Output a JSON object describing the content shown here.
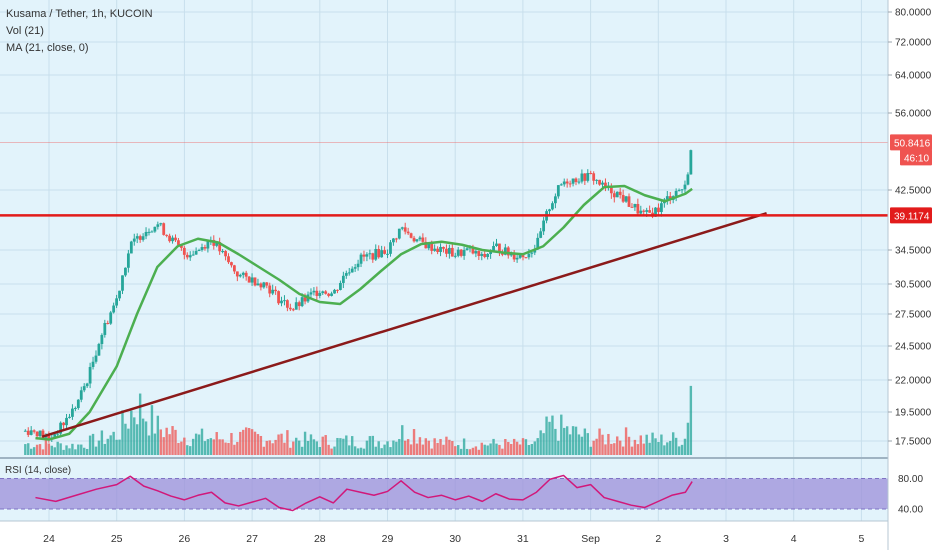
{
  "header": {
    "symbol_line": "Kusama / Tether, 1h, KUCOIN",
    "vol_line": "Vol (21)",
    "ma_line": "MA (21, close, 0)"
  },
  "rsi_panel": {
    "label": "RSI (14, close)",
    "ticks": [
      "80.00",
      "40.00"
    ]
  },
  "colors": {
    "background": "#e2f3fb",
    "up_candle": "#26a69a",
    "down_candle": "#ef5350",
    "ma_line": "#4caf50",
    "trendline": "#8b1a1a",
    "resistance": "#e21b1b",
    "rsi_line": "#d1187a",
    "rsi_band": "#9c8fd9"
  },
  "chart_data": {
    "type": "candlestick",
    "x_tick_labels": [
      "24",
      "25",
      "26",
      "27",
      "28",
      "29",
      "30",
      "31",
      "Sep",
      "2",
      "3",
      "4",
      "5"
    ],
    "y_tick_labels": [
      "80.0000",
      "72.0000",
      "64.0000",
      "56.0000",
      "42.5000",
      "34.5000",
      "30.5000",
      "27.5000",
      "24.5000",
      "22.0000",
      "19.5000",
      "17.5000"
    ],
    "price_badges": [
      {
        "label": "50.8416",
        "color": "#ef5350"
      },
      {
        "label": "46:10",
        "color": "#ef5350"
      },
      {
        "label": "39.1174",
        "color": "#e21b1b"
      }
    ],
    "resistance_level": 39.1174,
    "last_price": 50.8416,
    "close_path": [
      [
        23.8,
        18.2
      ],
      [
        24.0,
        17.6
      ],
      [
        24.2,
        18.6
      ],
      [
        24.4,
        20.0
      ],
      [
        24.6,
        22.5
      ],
      [
        24.8,
        26.0
      ],
      [
        25.0,
        29.0
      ],
      [
        25.2,
        35.0
      ],
      [
        25.4,
        37.0
      ],
      [
        25.6,
        38.0
      ],
      [
        25.8,
        36.0
      ],
      [
        26.0,
        34.0
      ],
      [
        26.2,
        34.5
      ],
      [
        26.4,
        36.0
      ],
      [
        26.6,
        33.5
      ],
      [
        26.8,
        31.5
      ],
      [
        27.0,
        31.0
      ],
      [
        27.2,
        30.5
      ],
      [
        27.4,
        29.0
      ],
      [
        27.6,
        28.0
      ],
      [
        27.8,
        29.0
      ],
      [
        28.0,
        30.0
      ],
      [
        28.2,
        29.5
      ],
      [
        28.4,
        32.0
      ],
      [
        28.6,
        33.5
      ],
      [
        28.8,
        34.0
      ],
      [
        29.0,
        34.5
      ],
      [
        29.2,
        37.5
      ],
      [
        29.4,
        36.0
      ],
      [
        29.6,
        35.0
      ],
      [
        29.8,
        34.5
      ],
      [
        30.0,
        34.0
      ],
      [
        30.2,
        34.5
      ],
      [
        30.4,
        33.5
      ],
      [
        30.6,
        35.0
      ],
      [
        30.8,
        34.0
      ],
      [
        31.0,
        33.8
      ],
      [
        31.2,
        35.0
      ],
      [
        31.4,
        40.5
      ],
      [
        31.6,
        44.0
      ],
      [
        31.8,
        44.5
      ],
      [
        32.0,
        45.0
      ],
      [
        32.2,
        43.0
      ],
      [
        32.4,
        42.0
      ],
      [
        32.6,
        40.5
      ],
      [
        32.8,
        39.0
      ],
      [
        33.0,
        40.0
      ],
      [
        33.2,
        42.0
      ],
      [
        33.4,
        43.0
      ],
      [
        33.5,
        50.8
      ]
    ],
    "ma_path": [
      [
        23.8,
        17.7
      ],
      [
        24.0,
        17.6
      ],
      [
        24.3,
        18.0
      ],
      [
        24.6,
        19.5
      ],
      [
        25.0,
        23.0
      ],
      [
        25.3,
        27.5
      ],
      [
        25.6,
        32.5
      ],
      [
        25.9,
        35.0
      ],
      [
        26.2,
        36.0
      ],
      [
        26.5,
        35.5
      ],
      [
        26.8,
        34.0
      ],
      [
        27.1,
        32.5
      ],
      [
        27.4,
        31.0
      ],
      [
        27.7,
        29.5
      ],
      [
        28.0,
        28.7
      ],
      [
        28.3,
        28.5
      ],
      [
        28.6,
        30.0
      ],
      [
        28.9,
        32.0
      ],
      [
        29.2,
        34.0
      ],
      [
        29.5,
        35.3
      ],
      [
        29.8,
        35.6
      ],
      [
        30.1,
        35.2
      ],
      [
        30.4,
        34.5
      ],
      [
        30.7,
        34.2
      ],
      [
        31.0,
        34.0
      ],
      [
        31.3,
        35.0
      ],
      [
        31.6,
        37.5
      ],
      [
        31.9,
        40.5
      ],
      [
        32.2,
        43.0
      ],
      [
        32.5,
        43.2
      ],
      [
        32.8,
        41.8
      ],
      [
        33.1,
        41.0
      ],
      [
        33.4,
        42.0
      ],
      [
        33.5,
        42.7
      ]
    ],
    "trendline": {
      "start": [
        23.9,
        17.8
      ],
      "end": [
        34.6,
        39.4
      ]
    },
    "volume_path": [
      [
        23.8,
        0.12
      ],
      [
        24.4,
        0.1
      ],
      [
        25.0,
        0.22
      ],
      [
        25.3,
        0.55
      ],
      [
        25.6,
        0.3
      ],
      [
        26.0,
        0.2
      ],
      [
        26.5,
        0.18
      ],
      [
        27.0,
        0.2
      ],
      [
        27.5,
        0.18
      ],
      [
        28.0,
        0.15
      ],
      [
        28.5,
        0.15
      ],
      [
        29.0,
        0.15
      ],
      [
        29.3,
        0.28
      ],
      [
        29.7,
        0.14
      ],
      [
        30.3,
        0.12
      ],
      [
        30.8,
        0.12
      ],
      [
        31.2,
        0.12
      ],
      [
        31.4,
        0.32
      ],
      [
        31.6,
        0.28
      ],
      [
        32.0,
        0.18
      ],
      [
        32.5,
        0.2
      ],
      [
        33.0,
        0.16
      ],
      [
        33.4,
        0.18
      ],
      [
        33.5,
        1.0
      ]
    ],
    "rsi_path": [
      [
        23.8,
        55
      ],
      [
        24.1,
        50
      ],
      [
        24.4,
        58
      ],
      [
        24.7,
        66
      ],
      [
        25.0,
        72
      ],
      [
        25.2,
        83
      ],
      [
        25.4,
        70
      ],
      [
        25.6,
        64
      ],
      [
        25.8,
        57
      ],
      [
        26.0,
        52
      ],
      [
        26.2,
        58
      ],
      [
        26.4,
        62
      ],
      [
        26.6,
        48
      ],
      [
        26.8,
        44
      ],
      [
        27.0,
        49
      ],
      [
        27.2,
        54
      ],
      [
        27.4,
        42
      ],
      [
        27.6,
        38
      ],
      [
        27.8,
        48
      ],
      [
        28.0,
        56
      ],
      [
        28.2,
        48
      ],
      [
        28.4,
        66
      ],
      [
        28.6,
        62
      ],
      [
        28.8,
        58
      ],
      [
        29.0,
        63
      ],
      [
        29.2,
        77
      ],
      [
        29.4,
        62
      ],
      [
        29.6,
        55
      ],
      [
        29.8,
        58
      ],
      [
        30.0,
        52
      ],
      [
        30.2,
        57
      ],
      [
        30.4,
        50
      ],
      [
        30.6,
        60
      ],
      [
        30.8,
        53
      ],
      [
        31.0,
        52
      ],
      [
        31.2,
        62
      ],
      [
        31.4,
        79
      ],
      [
        31.6,
        84
      ],
      [
        31.8,
        68
      ],
      [
        32.0,
        72
      ],
      [
        32.2,
        55
      ],
      [
        32.4,
        50
      ],
      [
        32.6,
        45
      ],
      [
        32.8,
        42
      ],
      [
        33.0,
        50
      ],
      [
        33.2,
        58
      ],
      [
        33.4,
        62
      ],
      [
        33.5,
        76
      ]
    ]
  }
}
